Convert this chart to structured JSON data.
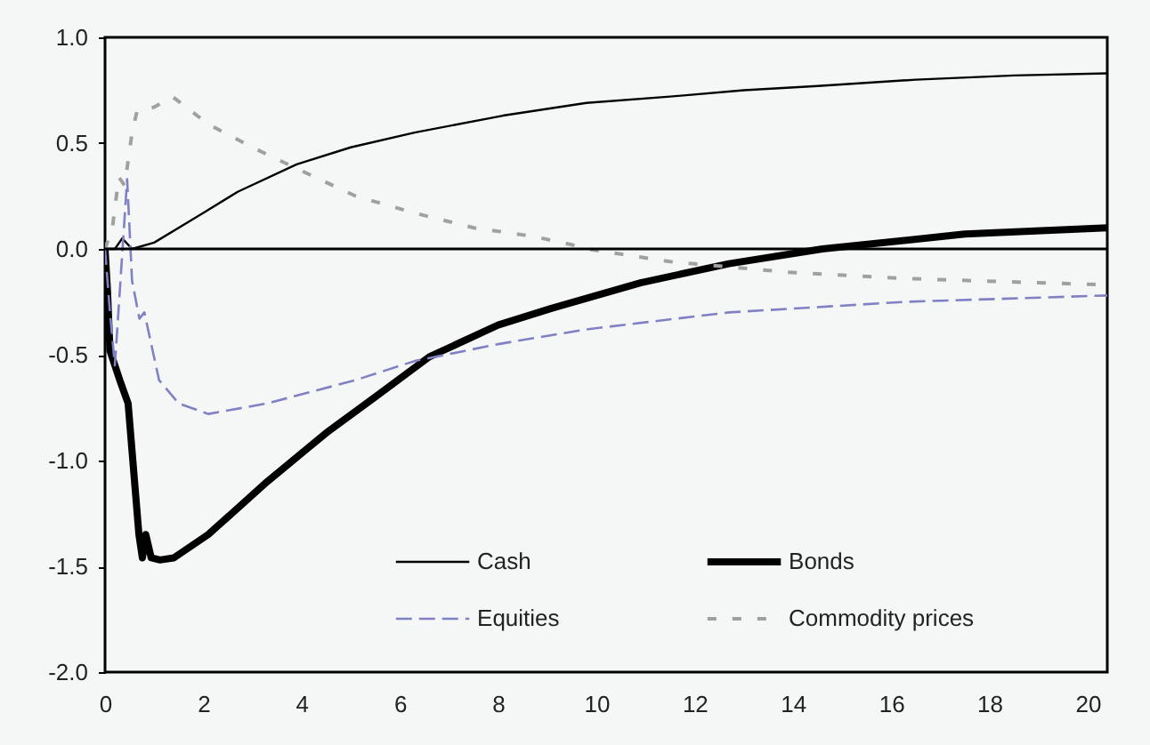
{
  "chart_data": {
    "type": "line",
    "xlim": [
      0,
      20.4
    ],
    "xticks": [
      0,
      2,
      4,
      6,
      8,
      10,
      12,
      14,
      16,
      18,
      20
    ],
    "ylim": [
      -2,
      1
    ],
    "yticks": [
      {
        "value": -2,
        "label": "-2.0"
      },
      {
        "value": -1.5,
        "label": "-1.5"
      },
      {
        "value": -1,
        "label": "-1.0"
      },
      {
        "value": -0.5,
        "label": "-0.5"
      },
      {
        "value": 0,
        "label": "0.0"
      },
      {
        "value": 0.5,
        "label": "0.5"
      },
      {
        "value": 1,
        "label": "1.0"
      }
    ],
    "legend": "bottom",
    "ref_lines": [
      {
        "axis": "y",
        "value": 0,
        "color": "#000000"
      }
    ],
    "series": [
      {
        "name": "Cash",
        "color": "#000000",
        "line_style": "solid",
        "x": [
          0,
          0.2,
          0.35,
          0.55,
          1.0,
          2.0,
          2.7,
          3.9,
          5.0,
          6.3,
          8.1,
          9.8,
          11.5,
          13.0,
          14.5,
          16.5,
          18.5,
          20.4
        ],
        "values": [
          0,
          0,
          0.05,
          0,
          0.03,
          0.17,
          0.27,
          0.4,
          0.48,
          0.55,
          0.63,
          0.69,
          0.72,
          0.75,
          0.77,
          0.8,
          0.82,
          0.83
        ]
      },
      {
        "name": "Bonds",
        "color": "#000000",
        "line_style": "solid",
        "x": [
          0,
          0.05,
          0.1,
          0.2,
          0.3,
          0.47,
          0.69,
          0.76,
          0.83,
          0.94,
          1.12,
          1.4,
          2.1,
          3.3,
          4.5,
          5.5,
          6.6,
          8.0,
          9.1,
          10.9,
          12.7,
          14.6,
          17.5,
          20.4
        ],
        "values": [
          0,
          -0.2,
          -0.48,
          -0.55,
          -0.62,
          -0.73,
          -1.35,
          -1.46,
          -1.35,
          -1.46,
          -1.47,
          -1.46,
          -1.35,
          -1.1,
          -0.87,
          -0.7,
          -0.51,
          -0.36,
          -0.28,
          -0.16,
          -0.07,
          0.0,
          0.07,
          0.1
        ]
      },
      {
        "name": "Equities",
        "color": "#8080c4",
        "line_style": "dashed",
        "x": [
          0,
          0.1,
          0.2,
          0.3,
          0.45,
          0.55,
          0.7,
          0.8,
          1.1,
          1.5,
          2.1,
          3.3,
          5.1,
          6.3,
          8.0,
          9.8,
          12.7,
          16.3,
          20.4
        ],
        "values": [
          0,
          -0.3,
          -0.55,
          -0.2,
          0.33,
          -0.15,
          -0.33,
          -0.3,
          -0.62,
          -0.73,
          -0.78,
          -0.73,
          -0.62,
          -0.53,
          -0.45,
          -0.38,
          -0.3,
          -0.25,
          -0.22
        ]
      },
      {
        "name": "Commodity prices",
        "color": "#a0a0a0",
        "line_style": "dotted",
        "x": [
          0,
          0.15,
          0.28,
          0.4,
          0.55,
          0.65,
          1.0,
          1.37,
          2.1,
          3.0,
          3.9,
          5.1,
          6.3,
          7.5,
          8.7,
          9.5,
          9.8,
          11.5,
          13.9,
          16.3,
          20.4
        ],
        "values": [
          0,
          0.1,
          0.34,
          0.3,
          0.55,
          0.65,
          0.67,
          0.72,
          0.59,
          0.48,
          0.38,
          0.25,
          0.17,
          0.1,
          0.06,
          0.02,
          0,
          -0.06,
          -0.11,
          -0.14,
          -0.17
        ]
      }
    ]
  }
}
